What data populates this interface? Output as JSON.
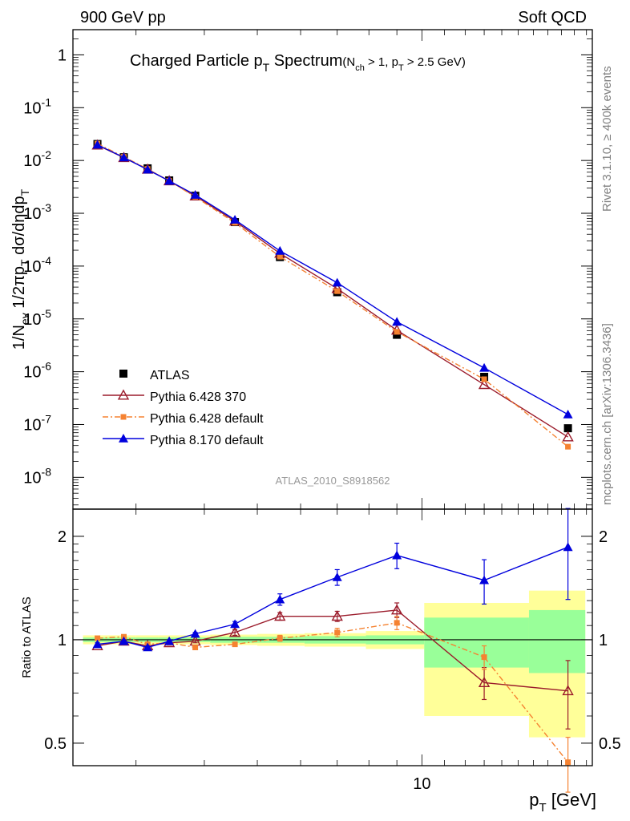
{
  "header": {
    "left": "900 GeV pp",
    "right": "Soft QCD"
  },
  "side_labels": {
    "rivet": "Rivet 3.1.10, ≥ 400k events",
    "mcplots": "mcplots.cern.ch [arXiv:1306.3436]"
  },
  "chart_data": [
    {
      "type": "line",
      "panel": "main",
      "title": "Charged Particle pT Spectrum (Nch > 1, pT > 2.5 GeV)",
      "title_parts": {
        "main": "Charged Particle p",
        "main_sub": "T",
        "main_tail": " Spectrum",
        "cut_a": "(N",
        "cut_a_sub": "ch",
        "cut_b": " > 1, p",
        "cut_b_sub": "T",
        "cut_c": " > 2.5 GeV)"
      },
      "watermark": "ATLAS_2010_S8918562",
      "ylabel": "1/Nev 1/2πpT dσ/dηdpT",
      "ylabel_parts": {
        "a": "1/N",
        "a_sub": "ev",
        "b": " 1/2πp",
        "b_sub": "T",
        "c": " dσ/dηdp",
        "c_sub": "T"
      },
      "yscale": "log",
      "ylim": [
        2.5e-09,
        3
      ],
      "xscale": "log",
      "xlim": [
        2.3,
        20.5
      ],
      "yticks": [
        {
          "value": 1,
          "label": "1"
        },
        {
          "value": 0.1,
          "label": "10",
          "exp": "-1"
        },
        {
          "value": 0.01,
          "label": "10",
          "exp": "-2"
        },
        {
          "value": 0.001,
          "label": "10",
          "exp": "-3"
        },
        {
          "value": 0.0001,
          "label": "10",
          "exp": "-4"
        },
        {
          "value": 1e-05,
          "label": "10",
          "exp": "-5"
        },
        {
          "value": 1e-06,
          "label": "10",
          "exp": "-6"
        },
        {
          "value": 1e-07,
          "label": "10",
          "exp": "-7"
        },
        {
          "value": 1e-08,
          "label": "10",
          "exp": "-8"
        }
      ],
      "legend_position": "lower-left",
      "x": [
        2.55,
        2.85,
        3.15,
        3.45,
        3.85,
        4.55,
        5.5,
        7.0,
        9.0,
        13.0,
        18.5
      ],
      "series": [
        {
          "name": "ATLAS",
          "color": "#000000",
          "marker": "square-filled",
          "line": "none",
          "values": [
            0.0205,
            0.0115,
            0.0071,
            0.0042,
            0.00215,
            0.00068,
            0.000148,
            3.2e-05,
            5e-06,
            8e-07,
            8.5e-08
          ]
        },
        {
          "name": "Pythia 6.428 370",
          "color": "#9b1b2b",
          "marker": "triangle-open",
          "line": "solid",
          "values": [
            0.0195,
            0.0113,
            0.0068,
            0.0041,
            0.00212,
            0.00071,
            0.000174,
            3.75e-05,
            6.1e-06,
            5.7e-07,
            5.8e-08
          ]
        },
        {
          "name": "Pythia 6.428 default",
          "color": "#f58231",
          "marker": "square-filled-small",
          "line": "dashdot",
          "values": [
            0.0208,
            0.0117,
            0.0069,
            0.0041,
            0.00205,
            0.00066,
            0.000151,
            3.35e-05,
            5.7e-06,
            7.2e-07,
            3.8e-08
          ]
        },
        {
          "name": "Pythia 8.170 default",
          "color": "#0000dd",
          "marker": "triangle-filled",
          "line": "solid",
          "values": [
            0.0198,
            0.0114,
            0.0067,
            0.0041,
            0.00223,
            0.000753,
            0.000194,
            4.85e-05,
            8.8e-06,
            1.18e-06,
            1.55e-07
          ]
        }
      ]
    },
    {
      "type": "line",
      "panel": "ratio",
      "ylabel": "Ratio to ATLAS",
      "xlabel": "pT [GeV]",
      "xlabel_parts": {
        "a": "p",
        "a_sub": "T",
        "b": " [GeV]"
      },
      "yscale": "log",
      "ylim": [
        0.43,
        2.4
      ],
      "xscale": "log",
      "xlim": [
        2.3,
        20.5
      ],
      "yticks": [
        {
          "value": 0.5,
          "label": "0.5"
        },
        {
          "value": 1,
          "label": "1"
        },
        {
          "value": 2,
          "label": "2"
        }
      ],
      "xticks": [
        {
          "value": 10,
          "label": "10"
        }
      ],
      "bands": [
        {
          "x": [
            2.4,
            2.7
          ],
          "green": [
            0.985,
            1.015
          ],
          "yellow": [
            0.97,
            1.03
          ]
        },
        {
          "x": [
            2.7,
            3.0
          ],
          "green": [
            0.985,
            1.015
          ],
          "yellow": [
            0.97,
            1.03
          ]
        },
        {
          "x": [
            3.0,
            3.3
          ],
          "green": [
            0.985,
            1.015
          ],
          "yellow": [
            0.97,
            1.03
          ]
        },
        {
          "x": [
            3.3,
            3.6
          ],
          "green": [
            0.985,
            1.015
          ],
          "yellow": [
            0.97,
            1.03
          ]
        },
        {
          "x": [
            3.6,
            4.1
          ],
          "green": [
            0.985,
            1.015
          ],
          "yellow": [
            0.97,
            1.03
          ]
        },
        {
          "x": [
            4.1,
            5.0
          ],
          "green": [
            0.98,
            1.02
          ],
          "yellow": [
            0.965,
            1.035
          ]
        },
        {
          "x": [
            5.0,
            6.1
          ],
          "green": [
            0.98,
            1.02
          ],
          "yellow": [
            0.96,
            1.04
          ]
        },
        {
          "x": [
            6.1,
            7.9
          ],
          "green": [
            0.975,
            1.025
          ],
          "yellow": [
            0.955,
            1.045
          ]
        },
        {
          "x": [
            7.9,
            10.1
          ],
          "green": [
            0.97,
            1.03
          ],
          "yellow": [
            0.94,
            1.06
          ]
        },
        {
          "x": [
            10.1,
            15.7
          ],
          "green": [
            0.83,
            1.16
          ],
          "yellow": [
            0.6,
            1.28
          ]
        },
        {
          "x": [
            15.7,
            19.9
          ],
          "green": [
            0.8,
            1.22
          ],
          "yellow": [
            0.52,
            1.39
          ]
        }
      ],
      "x": [
        2.55,
        2.85,
        3.15,
        3.45,
        3.85,
        4.55,
        5.5,
        7.0,
        9.0,
        13.0,
        18.5
      ],
      "series": [
        {
          "name": "Pythia 6.428 370",
          "color": "#9b1b2b",
          "marker": "triangle-open",
          "line": "solid",
          "values": [
            0.96,
            0.99,
            0.96,
            0.98,
            0.99,
            1.05,
            1.17,
            1.17,
            1.22,
            0.75,
            0.71
          ],
          "err": [
            0.01,
            0.01,
            0.01,
            0.01,
            0.01,
            0.02,
            0.03,
            0.04,
            0.06,
            0.08,
            0.16
          ]
        },
        {
          "name": "Pythia 6.428 default",
          "color": "#f58231",
          "marker": "square-filled-small",
          "line": "dashdot",
          "values": [
            1.01,
            1.02,
            0.97,
            0.98,
            0.95,
            0.97,
            1.01,
            1.05,
            1.12,
            0.89,
            0.44
          ],
          "err": [
            0.01,
            0.01,
            0.01,
            0.01,
            0.01,
            0.01,
            0.02,
            0.03,
            0.05,
            0.07,
            0.08
          ]
        },
        {
          "name": "Pythia 8.170 default",
          "color": "#0000dd",
          "marker": "triangle-filled",
          "line": "solid",
          "values": [
            0.97,
            0.99,
            0.95,
            0.99,
            1.04,
            1.11,
            1.31,
            1.52,
            1.76,
            1.49,
            1.86
          ],
          "err": [
            0.01,
            0.01,
            0.01,
            0.01,
            0.01,
            0.02,
            0.05,
            0.08,
            0.15,
            0.22,
            0.55
          ]
        }
      ]
    }
  ]
}
